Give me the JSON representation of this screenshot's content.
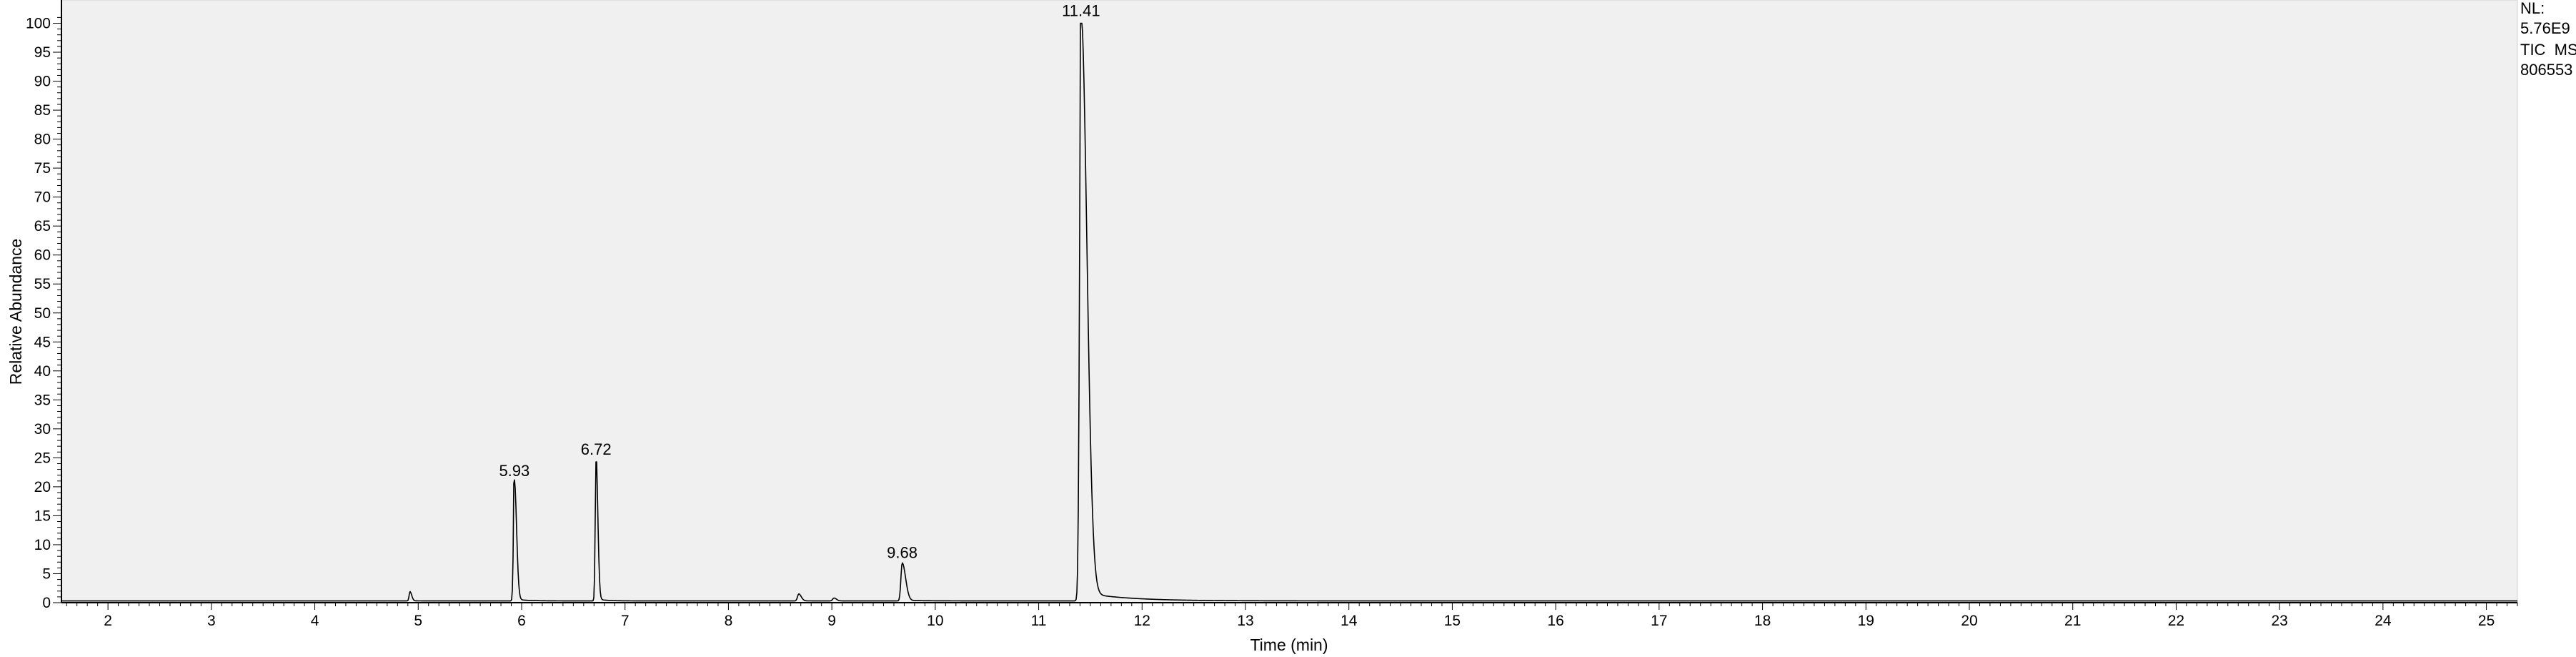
{
  "chart_data": {
    "type": "line",
    "title": "",
    "xlabel": "Time (min)",
    "ylabel": "Relative Abundance",
    "xlim": [
      1.55,
      25.3
    ],
    "ylim": [
      0,
      101
    ],
    "x_ticks": [
      2,
      3,
      4,
      5,
      6,
      7,
      8,
      9,
      10,
      11,
      12,
      13,
      14,
      15,
      16,
      17,
      18,
      19,
      20,
      21,
      22,
      23,
      24,
      25
    ],
    "y_ticks": [
      0,
      5,
      10,
      15,
      20,
      25,
      30,
      35,
      40,
      45,
      50,
      55,
      60,
      65,
      70,
      75,
      80,
      85,
      90,
      95,
      100
    ],
    "grid": false,
    "legend": "none",
    "baseline": 0.3,
    "peaks": [
      {
        "rt": 4.92,
        "height": 1.6,
        "width": 0.008,
        "tail": 0.015
      },
      {
        "rt": 5.93,
        "height": 20.6,
        "width": 0.009,
        "tail": 0.02,
        "label": "5.93"
      },
      {
        "rt": 6.72,
        "height": 24.3,
        "width": 0.008,
        "tail": 0.015,
        "label": "6.72"
      },
      {
        "rt": 8.68,
        "height": 1.2,
        "width": 0.012,
        "tail": 0.02
      },
      {
        "rt": 9.02,
        "height": 0.5,
        "width": 0.012,
        "tail": 0.02
      },
      {
        "rt": 9.68,
        "height": 6.5,
        "width": 0.012,
        "tail": 0.035,
        "label": "9.68"
      },
      {
        "rt": 11.41,
        "height": 100,
        "width": 0.014,
        "tail": 0.07,
        "label": "11.41"
      }
    ],
    "info": [
      "NL:",
      "5.76E9",
      "TIC  MS",
      "806553"
    ],
    "colors": {
      "plot_background": "#f0f0f0",
      "trace": "#000000",
      "axis": "#000000",
      "border": "#d0d0d0"
    }
  }
}
